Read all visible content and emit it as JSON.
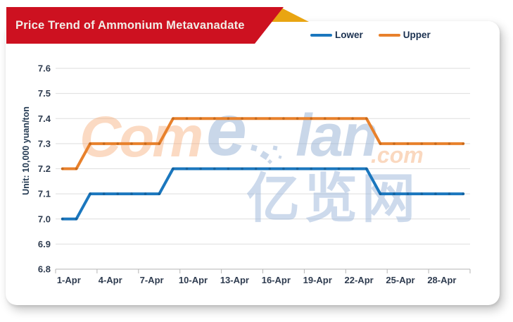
{
  "header": {
    "title": "Price Trend of Ammonium Metavanadate",
    "banner_color": "#cd1120",
    "fold_color": "#e9a512",
    "title_color": "#f1ede7"
  },
  "legend": {
    "items": [
      {
        "label": "Lower",
        "color": "#1b77be"
      },
      {
        "label": "Upper",
        "color": "#e8812c"
      }
    ]
  },
  "y_axis_title": "Unit: 10,000 yuan/ton",
  "watermark": {
    "com": "Com",
    "e": "e",
    "lan": "lan",
    "dotcom": ".com",
    "cn": "亿览网"
  },
  "chart_data": {
    "type": "line",
    "title": "Price Trend of Ammonium Metavanadate",
    "xlabel": "",
    "ylabel": "Unit: 10,000 yuan/ton",
    "ylim": [
      6.8,
      7.6
    ],
    "y_ticks": [
      6.8,
      6.9,
      7.0,
      7.1,
      7.2,
      7.3,
      7.4,
      7.5,
      7.6
    ],
    "grid": true,
    "legend_position": "top-right",
    "categories": [
      "1-Apr",
      "2-Apr",
      "3-Apr",
      "4-Apr",
      "5-Apr",
      "6-Apr",
      "7-Apr",
      "8-Apr",
      "9-Apr",
      "10-Apr",
      "11-Apr",
      "12-Apr",
      "13-Apr",
      "14-Apr",
      "15-Apr",
      "16-Apr",
      "17-Apr",
      "18-Apr",
      "19-Apr",
      "20-Apr",
      "21-Apr",
      "22-Apr",
      "23-Apr",
      "24-Apr",
      "25-Apr",
      "26-Apr",
      "27-Apr",
      "28-Apr",
      "29-Apr",
      "30-Apr"
    ],
    "x_tick_days": [
      1,
      4,
      7,
      10,
      13,
      16,
      19,
      22,
      25,
      28
    ],
    "series": [
      {
        "name": "Lower",
        "color": "#1b77be",
        "marker_color": "#135e99",
        "values": [
          7.0,
          7.0,
          7.1,
          7.1,
          7.1,
          7.1,
          7.1,
          7.1,
          7.2,
          7.2,
          7.2,
          7.2,
          7.2,
          7.2,
          7.2,
          7.2,
          7.2,
          7.2,
          7.2,
          7.2,
          7.2,
          7.2,
          7.2,
          7.1,
          7.1,
          7.1,
          7.1,
          7.1,
          7.1,
          7.1
        ]
      },
      {
        "name": "Upper",
        "color": "#e8812c",
        "marker_color": "#c2661a",
        "values": [
          7.2,
          7.2,
          7.3,
          7.3,
          7.3,
          7.3,
          7.3,
          7.3,
          7.4,
          7.4,
          7.4,
          7.4,
          7.4,
          7.4,
          7.4,
          7.4,
          7.4,
          7.4,
          7.4,
          7.4,
          7.4,
          7.4,
          7.4,
          7.3,
          7.3,
          7.3,
          7.3,
          7.3,
          7.3,
          7.3
        ]
      }
    ]
  }
}
